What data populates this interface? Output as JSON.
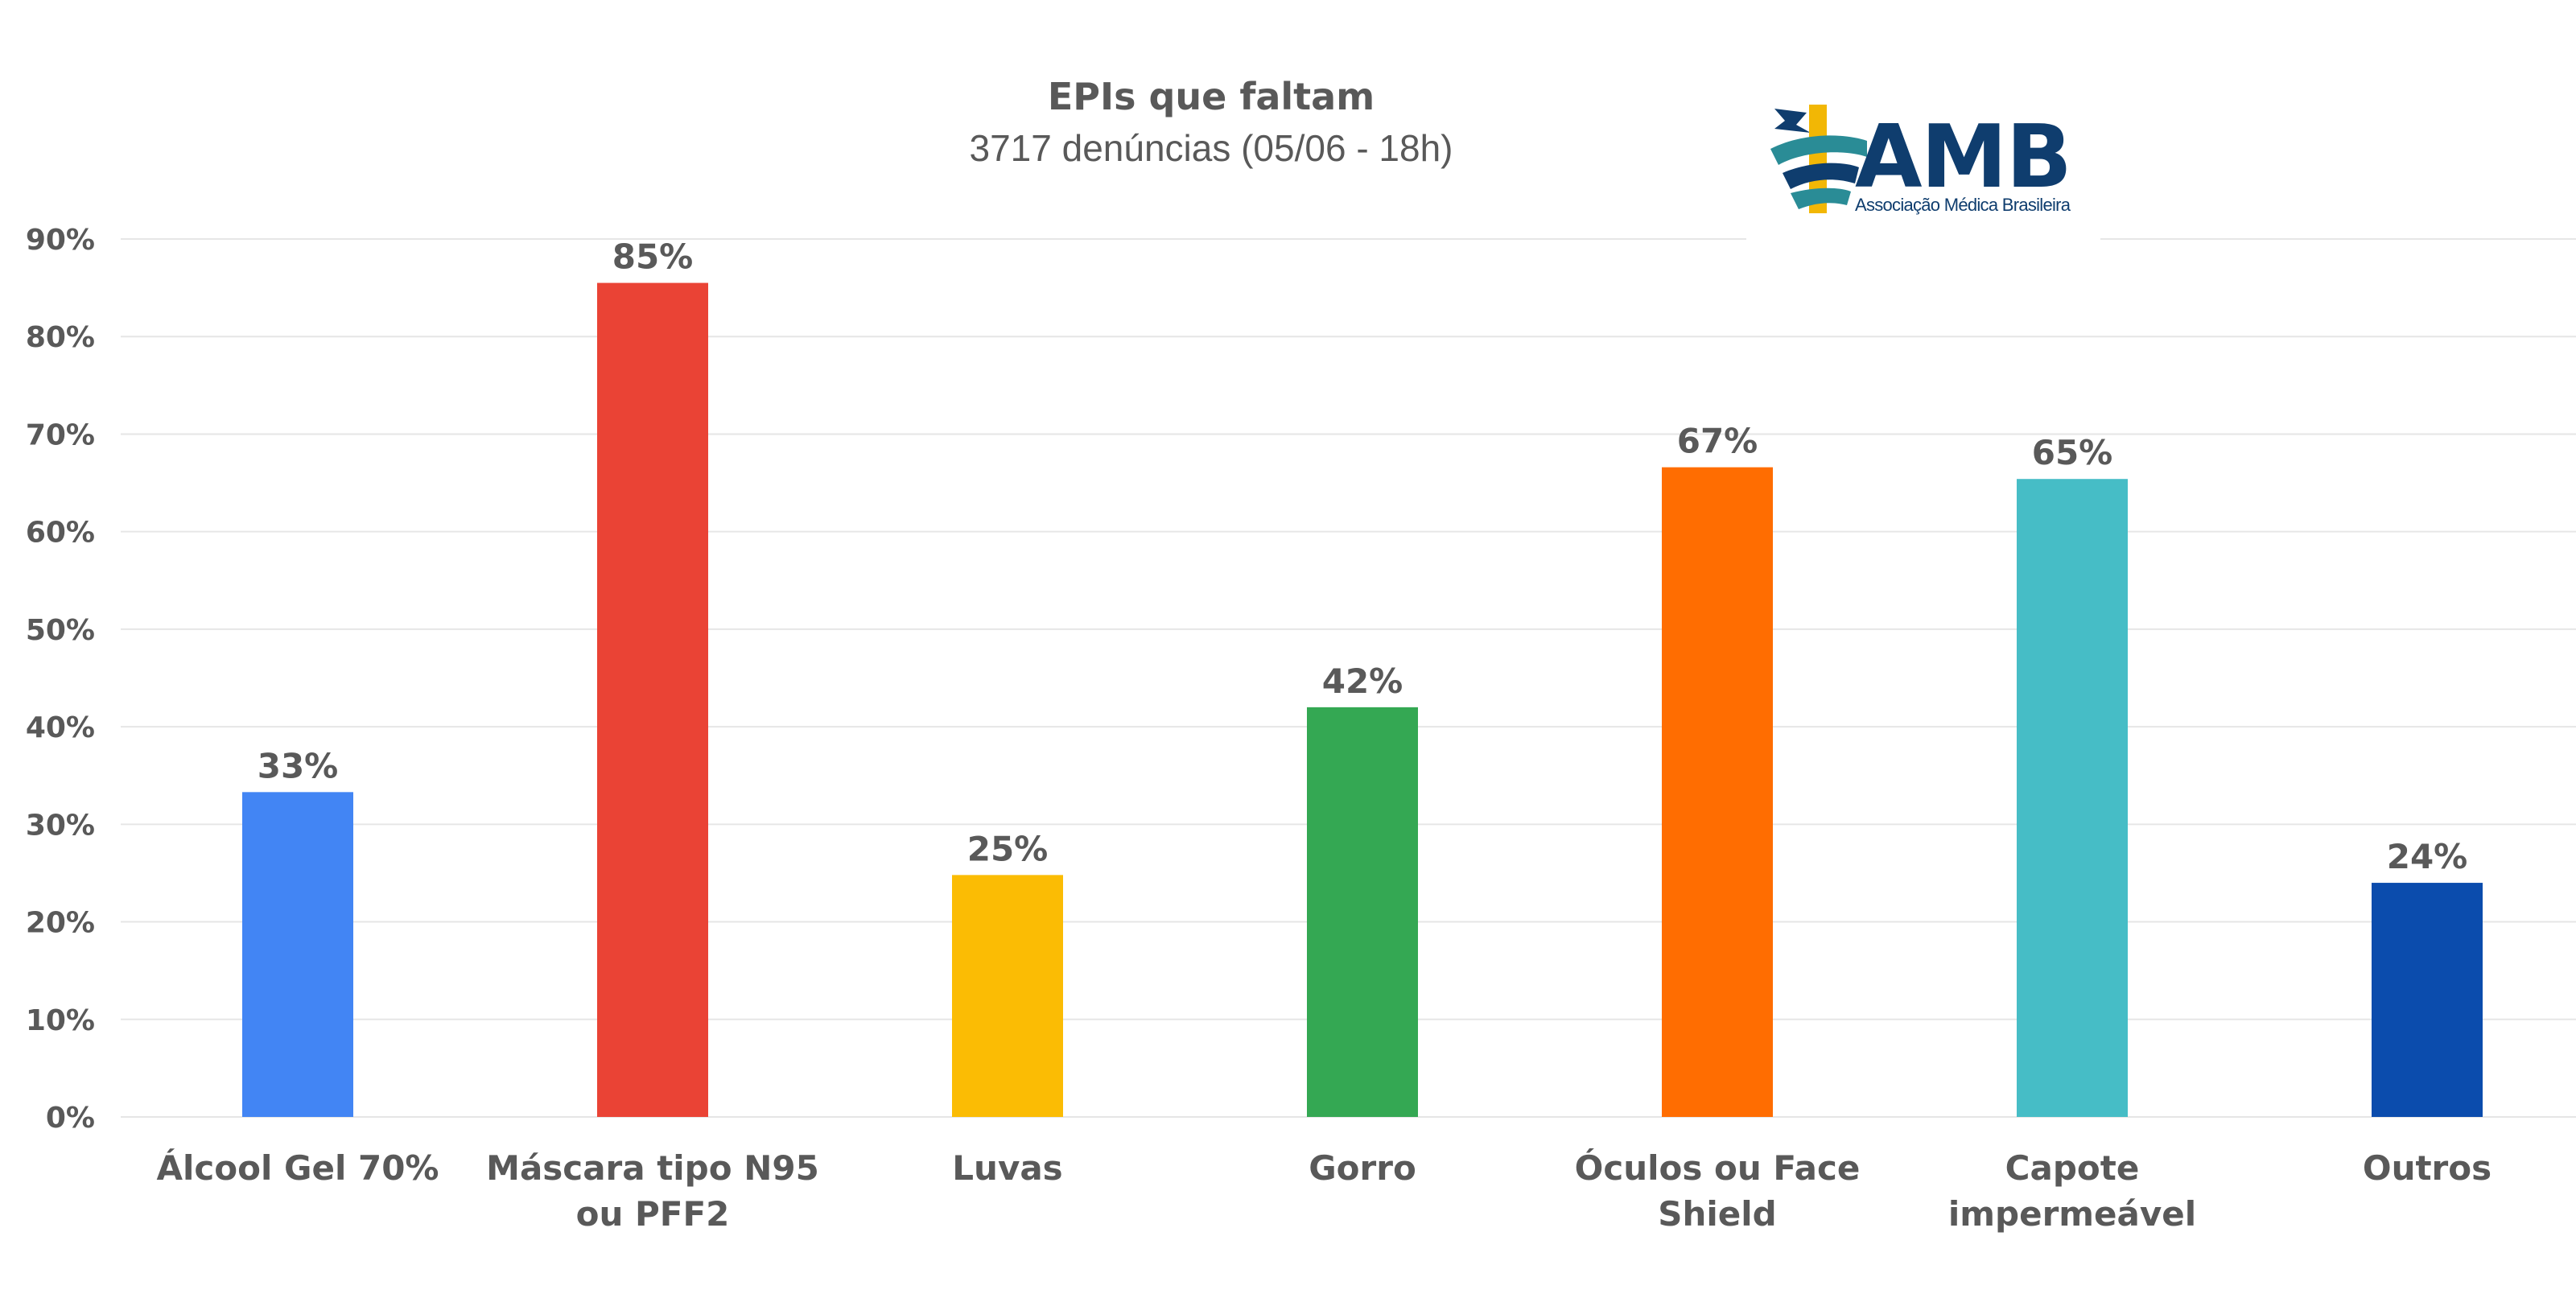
{
  "chart_data": {
    "type": "bar",
    "title": "EPIs que faltam",
    "subtitle": "3717 denúncias (05/06 - 18h)",
    "categories": [
      [
        "Álcool Gel 70%"
      ],
      [
        "Máscara tipo N95",
        "ou PFF2"
      ],
      [
        "Luvas"
      ],
      [
        "Gorro"
      ],
      [
        "Óculos ou Face",
        "Shield"
      ],
      [
        "Capote",
        "impermeável"
      ],
      [
        "Outros"
      ]
    ],
    "values": [
      33.3,
      85.5,
      24.8,
      42.0,
      66.6,
      65.4,
      24.0
    ],
    "data_labels": [
      "33%",
      "85%",
      "25%",
      "42%",
      "67%",
      "65%",
      "24%"
    ],
    "colors": [
      "#4285f4",
      "#ea4335",
      "#fbbc04",
      "#34a853",
      "#ff6d01",
      "#46bdc6",
      "#0b4cad"
    ],
    "ylim": [
      0,
      90
    ],
    "yticks": [
      0,
      10,
      20,
      30,
      40,
      50,
      60,
      70,
      80,
      90
    ],
    "ytick_labels": [
      "0%",
      "10%",
      "20%",
      "30%",
      "40%",
      "50%",
      "60%",
      "70%",
      "80%",
      "90%"
    ],
    "xlabel": "",
    "ylabel": "",
    "grid": true,
    "legend": "none"
  },
  "logo": {
    "name": "AMB",
    "tagline": "Associação Médica Brasileira",
    "colors": {
      "navy": "#0f3d6e",
      "teal": "#2a8c96",
      "gold": "#f2b705"
    }
  }
}
